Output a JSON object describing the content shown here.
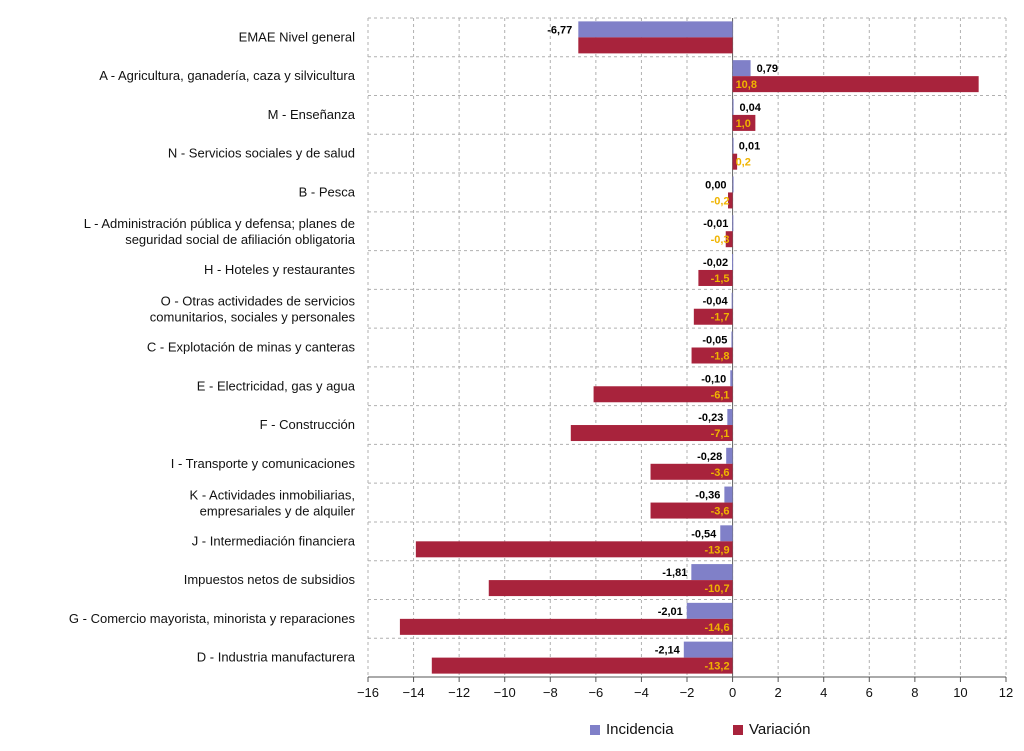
{
  "chart_data": {
    "type": "bar",
    "orientation": "horizontal",
    "categories": [
      [
        "EMAE Nivel general"
      ],
      [
        "A - Agricultura, ganadería, caza y silvicultura"
      ],
      [
        "M - Enseñanza"
      ],
      [
        "N - Servicios sociales y de salud"
      ],
      [
        "B - Pesca"
      ],
      [
        "L - Administración pública y defensa; planes de",
        "seguridad social de afiliación obligatoria"
      ],
      [
        "H - Hoteles y restaurantes"
      ],
      [
        "O - Otras actividades de servicios",
        "comunitarios, sociales y personales"
      ],
      [
        "C - Explotación de minas y canteras"
      ],
      [
        "E - Electricidad, gas y agua"
      ],
      [
        "F - Construcción"
      ],
      [
        "I - Transporte y comunicaciones"
      ],
      [
        "K - Actividades inmobiliarias,",
        "empresariales y de alquiler"
      ],
      [
        "J - Intermediación financiera"
      ],
      [
        "Impuestos netos de subsidios"
      ],
      [
        "G - Comercio mayorista, minorista y reparaciones"
      ],
      [
        "D - Industria manufacturera"
      ]
    ],
    "series": [
      {
        "name": "Incidencia",
        "color": "#8080c8",
        "label_color": "#000000",
        "values": [
          null,
          0.79,
          0.04,
          0.01,
          0.0,
          -0.01,
          -0.02,
          -0.04,
          -0.05,
          -0.1,
          -0.23,
          -0.28,
          -0.36,
          -0.54,
          -1.81,
          -2.01,
          -2.14
        ],
        "labels": [
          "-6,77",
          "0,79",
          "0,04",
          "0,01",
          "0,00",
          "-0,01",
          "-0,02",
          "-0,04",
          "-0,05",
          "-0,10",
          "-0,23",
          "-0,28",
          "-0,36",
          "-0,54",
          "-1,81",
          "-2,01",
          "-2,14"
        ]
      },
      {
        "name": "Variación",
        "color": "#a8233c",
        "label_color": "#f0b400",
        "values": [
          -6.77,
          10.8,
          1.0,
          0.2,
          -0.2,
          -0.3,
          -1.5,
          -1.7,
          -1.8,
          -6.1,
          -7.1,
          -3.6,
          -3.6,
          -13.9,
          -10.7,
          -14.6,
          -13.2
        ],
        "labels": [
          null,
          "10,8",
          "1,0",
          "0,2",
          "-0,2",
          "-0,3",
          "-1,5",
          "-1,7",
          "-1,8",
          "-6,1",
          "-7,1",
          "-3,6",
          "-3,6",
          "-13,9",
          "-10,7",
          "-14,6",
          "-13,2"
        ]
      }
    ],
    "first_row_incidencia_bar": -6.77,
    "xlim": [
      -16,
      12
    ],
    "xticks": [
      -16,
      -14,
      -12,
      -10,
      -8,
      -6,
      -4,
      -2,
      0,
      2,
      4,
      6,
      8,
      10,
      12
    ],
    "grid": true,
    "legend_position": "bottom",
    "title": "",
    "xlabel": "",
    "ylabel": ""
  }
}
